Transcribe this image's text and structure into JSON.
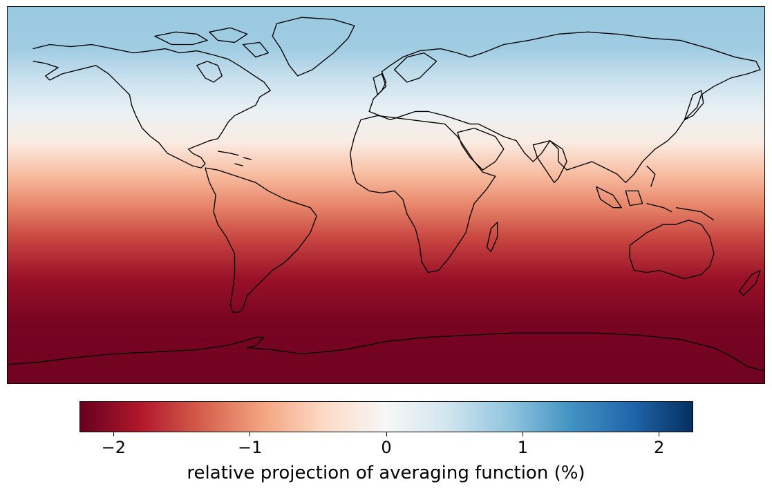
{
  "map": {
    "projection": "PlateCarree",
    "extent_lon": [
      -180,
      180
    ],
    "extent_lat": [
      -90,
      90
    ],
    "field": "zonal gradient (function of latitude)",
    "profile": [
      {
        "lat": 90,
        "value": 0.85
      },
      {
        "lat": 70,
        "value": 0.8
      },
      {
        "lat": 55,
        "value": 0.5
      },
      {
        "lat": 40,
        "value": 0.15
      },
      {
        "lat": 25,
        "value": -0.2
      },
      {
        "lat": 10,
        "value": -0.7
      },
      {
        "lat": -5,
        "value": -1.1
      },
      {
        "lat": -20,
        "value": -1.5
      },
      {
        "lat": -40,
        "value": -1.95
      },
      {
        "lat": -60,
        "value": -2.15
      },
      {
        "lat": -90,
        "value": -2.2
      }
    ],
    "coastline_color": "#000000"
  },
  "colorbar": {
    "colormap": "RdBu",
    "vmin": -2.25,
    "vmax": 2.25,
    "ticks": [
      {
        "value": -2,
        "label": "−2"
      },
      {
        "value": -1,
        "label": "−1"
      },
      {
        "value": 0,
        "label": "0"
      },
      {
        "value": 1,
        "label": "1"
      },
      {
        "value": 2,
        "label": "2"
      }
    ],
    "label": "relative projection of averaging function (%)",
    "color_stops": [
      "#67001f",
      "#b2182b",
      "#d6604d",
      "#f4a582",
      "#fddbc7",
      "#f7f7f7",
      "#d1e5f0",
      "#92c5de",
      "#4393c3",
      "#2166ac",
      "#053061"
    ]
  }
}
